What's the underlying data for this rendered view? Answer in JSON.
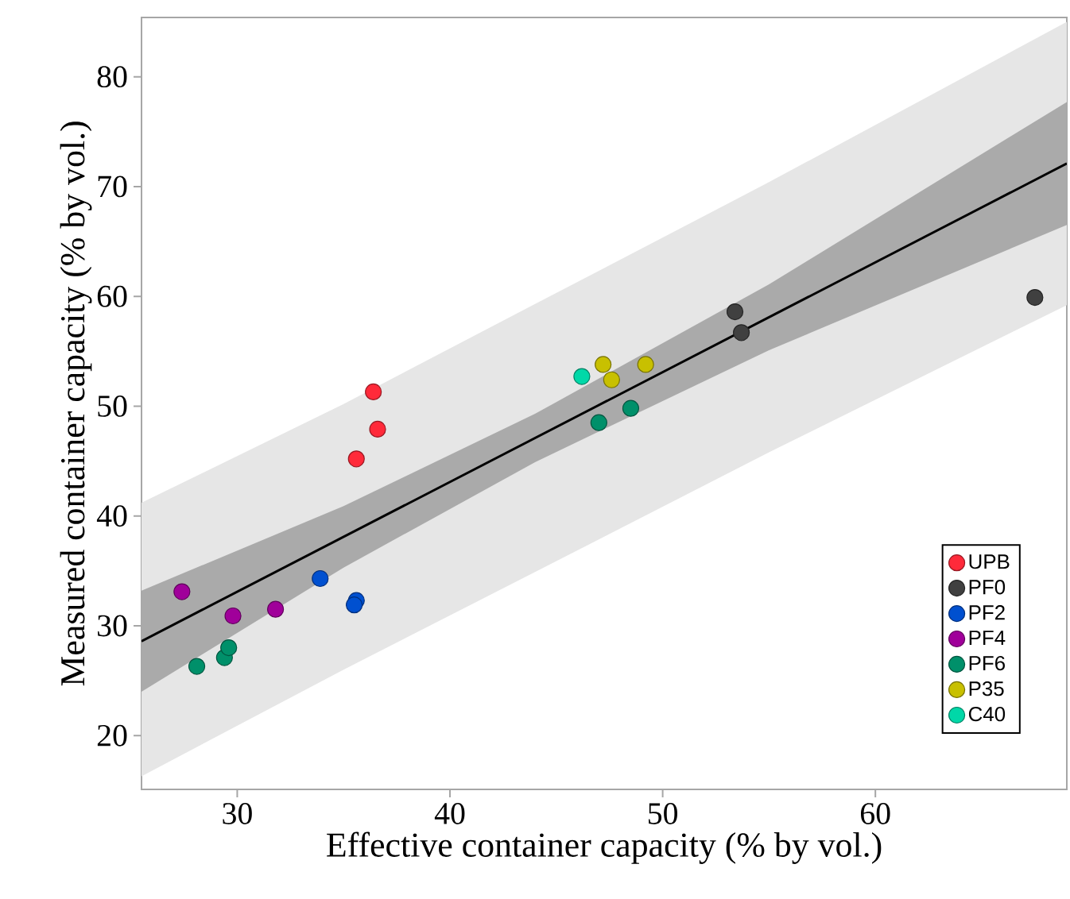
{
  "chart_data": {
    "type": "scatter",
    "xlabel": "Effective container capacity (% by vol.)",
    "ylabel": "Measured container capacity (% by vol.)",
    "xlim": [
      25.5,
      69
    ],
    "ylim": [
      15.1,
      85.4
    ],
    "xticks": [
      30,
      40,
      50,
      60
    ],
    "yticks": [
      20,
      30,
      40,
      50,
      60,
      70,
      80
    ],
    "grid": false,
    "legend": "bottom right",
    "marker": "circle",
    "series": [
      {
        "name": "UPB",
        "color": "#ff2a3a",
        "x": [
          36.4,
          36.6,
          35.6
        ],
        "values": [
          51.3,
          47.9,
          45.2
        ]
      },
      {
        "name": "PF0",
        "color": "#404040",
        "x": [
          53.4,
          53.7,
          67.5
        ],
        "values": [
          58.6,
          56.7,
          59.9
        ]
      },
      {
        "name": "PF2",
        "color": "#0050d0",
        "x": [
          33.9,
          35.6,
          35.5
        ],
        "values": [
          34.3,
          32.3,
          31.9
        ]
      },
      {
        "name": "PF4",
        "color": "#a0009a",
        "x": [
          27.4,
          29.8,
          31.8
        ],
        "values": [
          33.1,
          30.9,
          31.5
        ]
      },
      {
        "name": "PF6",
        "color": "#00906a",
        "x": [
          28.1,
          29.4,
          29.6,
          47.0,
          48.5
        ],
        "values": [
          26.3,
          27.1,
          28.0,
          48.5,
          49.8
        ]
      },
      {
        "name": "P35",
        "color": "#c8c000",
        "x": [
          47.2,
          47.6,
          49.2
        ],
        "values": [
          53.8,
          52.4,
          53.8
        ]
      },
      {
        "name": "C40",
        "color": "#00d8a8",
        "x": [
          46.2
        ],
        "values": [
          52.7
        ]
      },
      {
        "type": "line",
        "color": "#e6e6e6",
        "x": [
          25.5,
          35,
          44,
          55,
          69
        ],
        "values": [
          null,
          null,
          null,
          null,
          null
        ],
        "lower": [
          16.3,
          26.0,
          34.9,
          45.8,
          59.2
        ],
        "upper": [
          41.2,
          50.2,
          59.3,
          70.4,
          85.0
        ]
      },
      {
        "type": "line",
        "color": "#aaaaaa",
        "x": [
          25.5,
          35,
          44,
          55,
          69
        ],
        "values": [
          null,
          null,
          null,
          null,
          null
        ],
        "lower": [
          24.0,
          35.3,
          44.9,
          55.1,
          66.5
        ],
        "upper": [
          33.2,
          40.9,
          49.3,
          61.1,
          77.7
        ]
      },
      {
        "type": "line",
        "color": "#000000",
        "marker": "none",
        "x": [
          25.5,
          69
        ],
        "values": [
          28.6,
          72.1
        ]
      }
    ]
  }
}
